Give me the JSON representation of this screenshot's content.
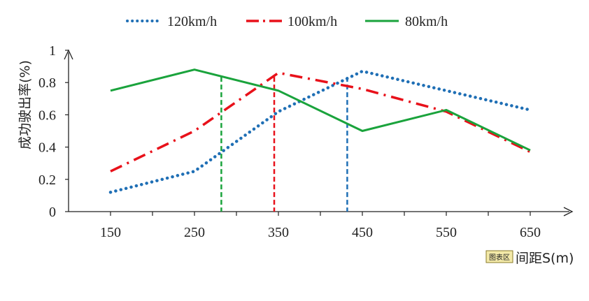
{
  "chart_data": {
    "type": "line",
    "title": "",
    "xlabel": "间距S(m)",
    "ylabel": "成功驶出率(%)",
    "xlim": [
      100,
      700
    ],
    "ylim": [
      0,
      1
    ],
    "x": [
      150,
      250,
      350,
      450,
      550,
      650
    ],
    "x_ticks": [
      150,
      250,
      350,
      450,
      550,
      650
    ],
    "y_ticks": [
      0,
      0.2,
      0.4,
      0.6,
      0.8,
      1
    ],
    "y_tick_labels": [
      "0",
      "0.2",
      "0.4",
      "0.6",
      "0.8",
      "1"
    ],
    "legend_position": "top",
    "area_tag": "图表区",
    "series": [
      {
        "name": "120km/h",
        "color": "#1f6fb5",
        "style": "dotted",
        "points": [
          [
            150,
            0.12
          ],
          [
            250,
            0.25
          ],
          [
            350,
            0.62
          ],
          [
            450,
            0.87
          ],
          [
            550,
            0.75
          ],
          [
            650,
            0.63
          ]
        ]
      },
      {
        "name": "100km/h",
        "color": "#e8111a",
        "style": "dashdot",
        "points": [
          [
            150,
            0.25
          ],
          [
            250,
            0.5
          ],
          [
            350,
            0.86
          ],
          [
            450,
            0.76
          ],
          [
            550,
            0.62
          ],
          [
            650,
            0.37
          ]
        ]
      },
      {
        "name": "80km/h",
        "color": "#1aa33c",
        "style": "solid",
        "points": [
          [
            150,
            0.75
          ],
          [
            250,
            0.88
          ],
          [
            350,
            0.75
          ],
          [
            450,
            0.5
          ],
          [
            550,
            0.63
          ],
          [
            650,
            0.38
          ]
        ]
      }
    ],
    "vertical_markers": [
      {
        "x": 282,
        "color": "#1aa33c"
      },
      {
        "x": 345,
        "color": "#e8111a"
      },
      {
        "x": 432,
        "color": "#1f6fb5"
      }
    ]
  }
}
